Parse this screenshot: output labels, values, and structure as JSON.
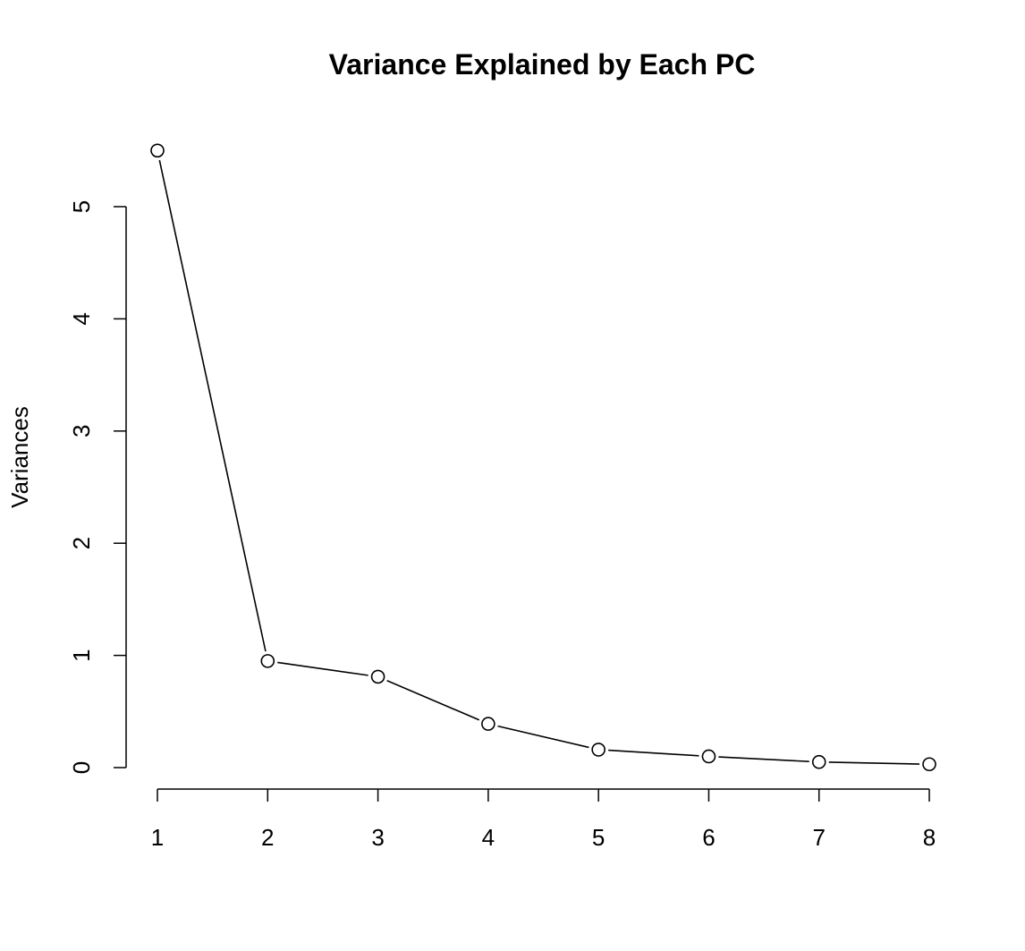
{
  "chart_data": {
    "type": "line",
    "title": "Variance Explained by Each PC",
    "xlabel": "",
    "ylabel": "Variances",
    "x": [
      1,
      2,
      3,
      4,
      5,
      6,
      7,
      8
    ],
    "x_tick_labels": [
      "1",
      "2",
      "3",
      "4",
      "5",
      "6",
      "7",
      "8"
    ],
    "y_ticks": [
      0,
      1,
      2,
      3,
      4,
      5
    ],
    "y_tick_labels": [
      "0",
      "1",
      "2",
      "3",
      "4",
      "5"
    ],
    "series": [
      {
        "values": [
          5.5,
          0.95,
          0.81,
          0.39,
          0.16,
          0.1,
          0.05,
          0.03
        ]
      }
    ],
    "xlim": [
      1,
      8
    ],
    "ylim": [
      0,
      5.5
    ],
    "markers": "open-circle",
    "grid": false,
    "legend": "none",
    "line_color": "#000000"
  }
}
